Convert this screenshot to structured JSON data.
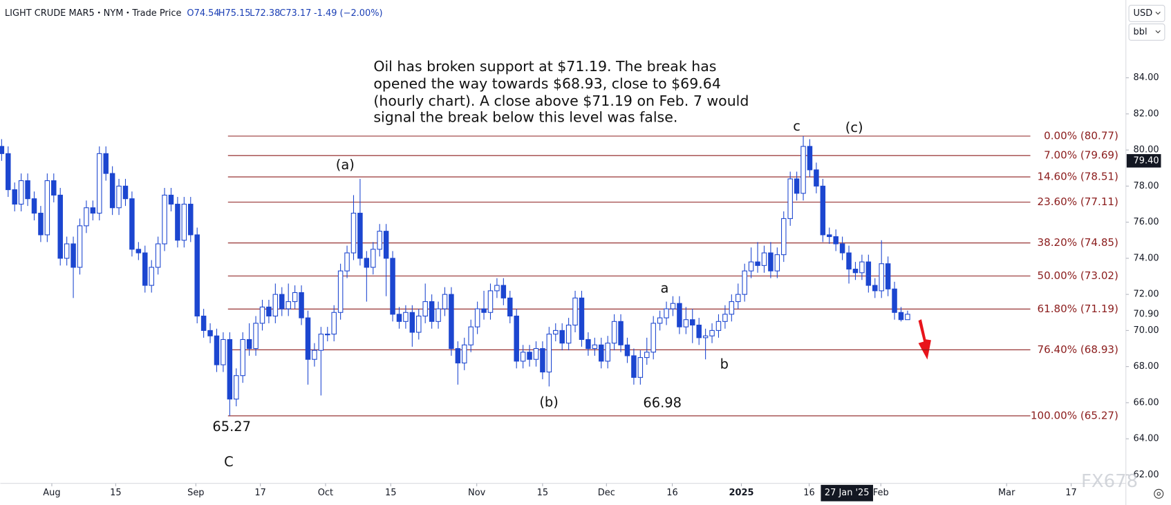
{
  "chart_data": {
    "type": "candlestick",
    "title": "LIGHT CRUDE MAR5・NYM・Trade Price",
    "header_values": [
      "O74.54",
      "H75.15",
      "L72.38",
      "C73.17",
      "-1.49 (−2.00%)"
    ],
    "currency": "USD",
    "unit": "bbl",
    "annotation": [
      "Oil has broken support at $71.19. The break has",
      "opened the way towards $68.93, close to $69.64",
      "(hourly chart). A close above $71.19 on Feb. 7 would",
      "signal the break below this level was false."
    ],
    "wave_labels": [
      "(a)",
      "a",
      "(b)",
      "b",
      "c",
      "(c)",
      "C",
      "65.27",
      "66.98"
    ],
    "watermark": "FX678",
    "up_color": "#ffffff",
    "down_color": "#1c46d0",
    "border_color": "#1c46d0",
    "fib_color": "#8b1c1c",
    "ylim": [
      61.53,
      88.31
    ],
    "yticks": [
      {
        "value": 62,
        "label": "62.00"
      },
      {
        "value": 64,
        "label": "64.00"
      },
      {
        "value": 66,
        "label": "66.00"
      },
      {
        "value": 68,
        "label": "68.00"
      },
      {
        "value": 70,
        "label": "70.00"
      },
      {
        "value": 72,
        "label": "72.00"
      },
      {
        "value": 74,
        "label": "74.00"
      },
      {
        "value": 76,
        "label": "76.00"
      },
      {
        "value": 78,
        "label": "78.00"
      },
      {
        "value": 80,
        "label": "80.00"
      },
      {
        "value": 82,
        "label": "82.00"
      },
      {
        "value": 84,
        "label": "84.00"
      }
    ],
    "xlim": [
      -0.2,
      172.5
    ],
    "xticks": [
      {
        "value": 7.7,
        "label": "Aug"
      },
      {
        "value": 17.5,
        "label": "15"
      },
      {
        "value": 29.8,
        "label": "Sep"
      },
      {
        "value": 39.7,
        "label": "17"
      },
      {
        "value": 49.7,
        "label": "Oct"
      },
      {
        "value": 59.7,
        "label": "15"
      },
      {
        "value": 72.9,
        "label": "Nov"
      },
      {
        "value": 83,
        "label": "15"
      },
      {
        "value": 92.8,
        "label": "Dec"
      },
      {
        "value": 102.9,
        "label": "16"
      },
      {
        "value": 113.5,
        "label": "2025"
      },
      {
        "value": 123.9,
        "label": "16"
      },
      {
        "value": 134.9,
        "label": "Feb"
      },
      {
        "value": 154.2,
        "label": "Mar"
      },
      {
        "value": 164.1,
        "label": "17"
      }
    ],
    "crosshair_date": {
      "value": 129.7,
      "label": "27 Jan '25"
    },
    "price_badges": [
      {
        "value": 79.4,
        "label": "79.40"
      },
      {
        "value": 70.9,
        "label": "70.90"
      }
    ],
    "fib_levels": [
      {
        "value": 80.77,
        "label": "0.00% (80.77)"
      },
      {
        "value": 79.69,
        "label": "7.00% (79.69)"
      },
      {
        "value": 78.51,
        "label": "14.60% (78.51)"
      },
      {
        "value": 77.11,
        "label": "23.60% (77.11)"
      },
      {
        "value": 74.85,
        "label": "38.20% (74.85)"
      },
      {
        "value": 73.02,
        "label": "50.00% (73.02)"
      },
      {
        "value": 71.19,
        "label": "61.80% (71.19)"
      },
      {
        "value": 68.93,
        "label": "76.40% (68.93)"
      },
      {
        "value": 65.27,
        "label": "100.00% (65.27)"
      }
    ],
    "open": [
      80.2,
      79.8,
      77.8,
      77.0,
      78.3,
      77.3,
      76.5,
      75.3,
      78.3,
      77.5,
      74.0,
      74.8,
      73.5,
      75.8,
      76.8,
      76.5,
      79.8,
      78.7,
      76.8,
      78.0,
      77.3,
      74.5,
      74.3,
      72.5,
      73.5,
      74.8,
      77.5,
      77.0,
      75.0,
      77.0,
      75.3,
      70.8,
      70.0,
      69.7,
      68.1,
      69.5,
      66.2,
      67.5,
      69.5,
      69.0,
      70.4,
      71.3,
      70.8,
      72.0,
      71.2,
      71.6,
      72.1,
      70.7,
      68.4,
      68.9,
      69.8,
      69.8,
      71.0,
      73.3,
      74.3,
      76.5,
      74.0,
      73.5,
      74.5,
      75.5,
      74.0,
      70.9,
      70.5,
      71.0,
      69.9,
      70.8,
      71.6,
      70.5,
      71.2,
      72.0,
      69.0,
      68.2,
      69.2,
      70.2,
      71.2,
      71.0,
      72.2,
      72.5,
      71.8,
      70.8,
      68.3,
      68.8,
      68.4,
      69.0,
      67.7,
      69.8,
      70.0,
      69.3,
      70.3,
      71.8,
      69.5,
      69.0,
      69.2,
      68.3,
      69.3,
      70.5,
      69.2,
      68.6,
      67.4,
      68.5,
      68.8,
      70.4,
      70.7,
      71.2,
      71.5,
      70.2,
      70.6,
      70.3,
      69.6,
      69.7,
      70.0,
      70.5,
      70.9,
      71.6,
      72.0,
      73.3,
      73.8,
      73.6,
      74.3,
      73.3,
      74.2,
      76.2,
      78.4,
      77.6,
      80.2,
      78.9,
      78.0,
      75.3,
      75.2,
      74.8,
      74.3,
      73.4,
      73.2,
      73.8,
      72.5,
      72.2,
      73.7,
      72.3,
      71.0,
      70.6
    ],
    "high": [
      80.6,
      80.2,
      78.2,
      78.7,
      78.7,
      77.7,
      76.9,
      78.7,
      78.7,
      77.9,
      75.2,
      75.2,
      76.2,
      77.2,
      77.2,
      80.2,
      80.2,
      79.1,
      78.4,
      78.4,
      77.7,
      74.9,
      74.7,
      73.9,
      75.2,
      77.9,
      77.9,
      77.4,
      77.4,
      77.4,
      75.7,
      71.2,
      70.4,
      70.1,
      69.9,
      69.9,
      67.9,
      69.9,
      70.4,
      70.8,
      71.7,
      71.7,
      72.6,
      72.4,
      72.6,
      72.5,
      72.5,
      71.1,
      69.3,
      70.2,
      70.2,
      71.4,
      73.7,
      74.7,
      77.5,
      78.4,
      74.4,
      74.9,
      75.9,
      75.9,
      74.4,
      71.3,
      71.4,
      71.4,
      71.2,
      72.6,
      72.0,
      71.6,
      72.4,
      72.4,
      69.4,
      69.6,
      70.6,
      71.6,
      72.2,
      72.6,
      72.9,
      72.9,
      72.2,
      71.2,
      69.2,
      69.2,
      69.4,
      69.4,
      70.2,
      70.4,
      70.4,
      70.7,
      72.2,
      72.2,
      69.9,
      69.6,
      69.6,
      69.7,
      70.9,
      70.9,
      69.6,
      69.0,
      68.9,
      69.6,
      70.8,
      71.1,
      71.6,
      71.9,
      71.9,
      71.3,
      71.2,
      70.7,
      70.1,
      70.4,
      70.9,
      71.4,
      72.0,
      72.6,
      73.7,
      74.6,
      74.9,
      74.7,
      74.9,
      74.6,
      76.6,
      78.8,
      78.8,
      80.77,
      80.6,
      79.3,
      78.4,
      75.7,
      75.6,
      75.2,
      74.7,
      73.8,
      74.2,
      74.2,
      72.9,
      75.0,
      74.1,
      72.7,
      71.3,
      71.1
    ],
    "low": [
      79.4,
      77.4,
      76.6,
      76.6,
      76.9,
      76.1,
      74.9,
      74.9,
      77.1,
      73.6,
      73.6,
      71.8,
      73.1,
      75.4,
      76.1,
      76.1,
      78.3,
      76.4,
      76.4,
      76.9,
      74.1,
      73.9,
      72.1,
      72.1,
      73.1,
      74.4,
      76.6,
      74.6,
      74.6,
      74.9,
      70.4,
      69.6,
      69.3,
      67.7,
      67.7,
      65.27,
      65.8,
      67.1,
      68.6,
      68.6,
      70.0,
      70.4,
      70.4,
      70.8,
      70.8,
      71.2,
      70.3,
      67.0,
      68.0,
      66.4,
      69.4,
      69.4,
      70.6,
      72.9,
      73.9,
      73.6,
      71.6,
      73.1,
      74.1,
      71.9,
      70.5,
      70.1,
      70.1,
      69.1,
      69.5,
      70.4,
      70.1,
      70.1,
      70.8,
      68.6,
      67.0,
      67.8,
      68.8,
      69.8,
      70.6,
      70.6,
      71.8,
      71.4,
      70.4,
      67.9,
      67.9,
      68.0,
      68.0,
      67.3,
      66.9,
      69.4,
      68.9,
      68.9,
      69.9,
      69.1,
      68.6,
      68.6,
      67.9,
      67.9,
      68.9,
      68.8,
      68.2,
      67.0,
      67.0,
      68.1,
      68.4,
      70.0,
      70.3,
      70.8,
      69.8,
      69.8,
      69.3,
      69.2,
      68.4,
      69.3,
      69.6,
      70.1,
      70.5,
      71.2,
      71.6,
      72.9,
      73.2,
      73.2,
      72.9,
      72.9,
      73.8,
      75.8,
      77.2,
      77.2,
      78.5,
      77.6,
      74.9,
      74.8,
      74.4,
      73.9,
      72.6,
      72.8,
      72.8,
      72.1,
      71.8,
      71.8,
      71.9,
      70.6,
      70.5,
      70.6
    ],
    "close": [
      79.8,
      77.8,
      77.0,
      78.3,
      77.3,
      76.5,
      75.3,
      78.3,
      77.5,
      74.0,
      74.8,
      73.5,
      75.8,
      76.8,
      76.5,
      79.8,
      78.7,
      76.8,
      78.0,
      77.3,
      74.5,
      74.3,
      72.5,
      73.5,
      74.8,
      77.5,
      77.0,
      75.0,
      77.0,
      75.3,
      70.8,
      70.0,
      69.7,
      68.1,
      69.5,
      66.2,
      67.5,
      69.5,
      69.0,
      70.4,
      71.3,
      70.8,
      72.0,
      71.2,
      71.6,
      72.1,
      70.7,
      68.4,
      68.9,
      69.8,
      69.8,
      71.0,
      73.3,
      74.3,
      76.5,
      74.0,
      73.5,
      74.5,
      75.5,
      74.0,
      70.9,
      70.5,
      71.0,
      69.9,
      70.8,
      71.6,
      70.5,
      71.2,
      72.0,
      69.0,
      68.2,
      69.2,
      70.2,
      71.2,
      71.0,
      72.2,
      72.5,
      71.8,
      70.8,
      68.3,
      68.8,
      68.4,
      69.0,
      67.7,
      69.8,
      70.0,
      69.3,
      70.3,
      71.8,
      69.5,
      69.0,
      69.2,
      68.3,
      69.3,
      70.5,
      69.2,
      68.6,
      67.4,
      68.5,
      68.8,
      70.4,
      70.7,
      71.2,
      71.5,
      70.2,
      70.6,
      70.3,
      69.6,
      69.7,
      70.0,
      70.5,
      70.9,
      71.6,
      72.0,
      73.3,
      73.8,
      73.6,
      74.3,
      73.3,
      74.2,
      76.2,
      78.4,
      77.6,
      80.2,
      78.9,
      78.0,
      75.3,
      75.2,
      74.8,
      74.3,
      73.4,
      73.2,
      73.8,
      72.5,
      72.2,
      73.7,
      72.3,
      71.0,
      70.6,
      70.9
    ]
  }
}
